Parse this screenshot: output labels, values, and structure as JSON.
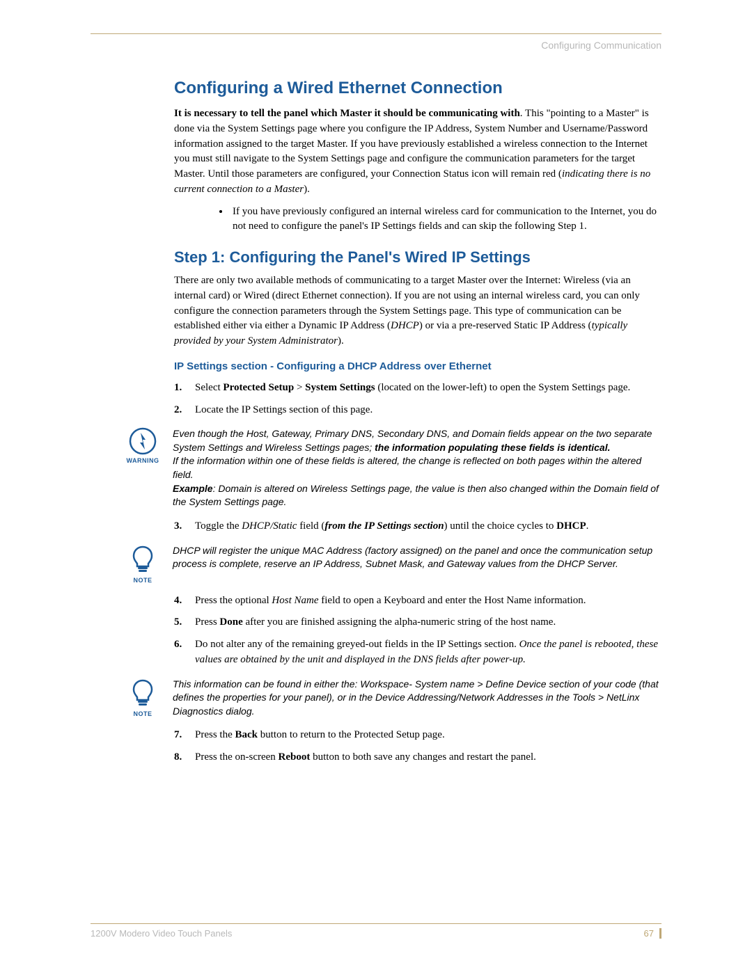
{
  "header": {
    "section_label": "Configuring Communication"
  },
  "h1": "Configuring a Wired Ethernet Connection",
  "intro_html": "<b>It is necessary to tell the panel which Master it should be communicating with</b>. This \"pointing to a Master\" is done via the System Settings page where you configure the IP Address, System Number and Username/Password information assigned to the target Master. If you have previously established a wireless connection to the Internet you must still navigate to the System Settings page and configure the communication parameters for the target Master. Until those parameters are configured, your Connection Status icon will remain red (<i>indicating there is no current connection to a Master</i>).",
  "intro_bullet": "If you have previously configured an internal wireless card for communication to the Internet, you do not need to configure the panel's IP Settings fields and can skip the following Step 1.",
  "h2": "Step 1: Configuring the Panel's Wired IP Settings",
  "step1_intro_html": "There are only two available methods of communicating to a target Master over the Internet: Wireless (via an internal card) or Wired (direct Ethernet connection). If you are not using an internal wireless card, you can only configure the connection parameters through the System Settings page. This type of communication can be established either via either a Dynamic IP Address (<i>DHCP</i>) or via a pre-reserved Static IP Address (<i>typically provided by your System Administrator</i>).",
  "h3": "IP Settings section - Configuring a DHCP Address over Ethernet",
  "steps_1_2": [
    "Select <b>Protected Setup</b> &gt; <b>System Settings</b> (located on the lower-left) to open the System Settings page.",
    "Locate the IP Settings section of this page."
  ],
  "warning_html": "Even though the Host, Gateway, Primary DNS, Secondary DNS, and Domain fields appear on the two separate System Settings and Wireless Settings pages; <b>the information populating these fields is identical.</b><br>If the information within one of these fields is altered, the change is reflected on both pages within the altered field.<br><b>Example</b>: Domain is altered on Wireless Settings page, the value is then also changed within the Domain field of the System Settings page.",
  "warning_label": "WARNING",
  "step_3": "Toggle the <i>DHCP/Static</i> field (<b><i>from the IP Settings section</i></b>) until the choice cycles to <b>DHCP</b>.",
  "note1_html": "DHCP will register the unique MAC Address (factory assigned) on the panel and once the communication setup process is complete, reserve an IP Address, Subnet Mask, and Gateway values from the DHCP Server.",
  "note_label": "NOTE",
  "steps_4_6": [
    "Press the optional <i>Host Name</i> field to open a Keyboard and enter the Host Name information.",
    "Press <b>Done</b> after you are finished assigning the alpha-numeric string of the host name.",
    "Do not alter any of the remaining greyed-out fields in the IP Settings section. <i>Once the panel is rebooted, these values are obtained by the unit and displayed in the DNS fields after power-up.</i>"
  ],
  "note2_html": "This information can be found in either the: Workspace- System name &gt; Define Device section of your code (that defines the properties for your panel), or in the Device Addressing/Network Addresses in the Tools &gt; NetLinx Diagnostics dialog.",
  "steps_7_8": [
    "Press the <b>Back</b> button to return to the Protected Setup page.",
    "Press the on-screen <b>Reboot</b> button to both save any changes and restart the panel."
  ],
  "footer": {
    "product": "1200V Modero Video Touch Panels",
    "page": "67"
  },
  "colors": {
    "heading": "#1d5b99",
    "rule": "#bfa876",
    "muted": "#b8b8b8"
  }
}
